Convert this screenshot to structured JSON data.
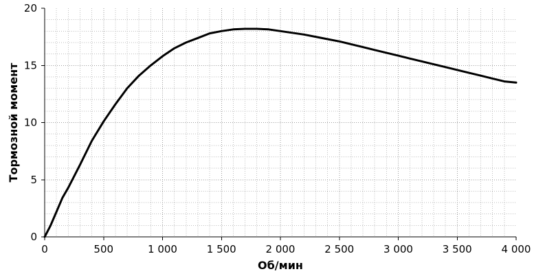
{
  "chart_data": {
    "type": "line",
    "title": "",
    "xlabel": "Об/мин",
    "ylabel": "Тормозной момент",
    "xlim": [
      0,
      4000
    ],
    "ylim": [
      0,
      20
    ],
    "x_ticks": [
      0,
      500,
      1000,
      1500,
      2000,
      2500,
      3000,
      3500,
      4000
    ],
    "x_tick_labels": [
      "0",
      "500",
      "1 000",
      "1 500",
      "2 000",
      "2 500",
      "3 000",
      "3 500",
      "4 000"
    ],
    "y_ticks": [
      0,
      5,
      10,
      15,
      20
    ],
    "y_tick_labels": [
      "0",
      "5",
      "10",
      "15",
      "20"
    ],
    "x_minor_step": 100,
    "y_minor_step": 1,
    "grid": true,
    "line_color": "#000000",
    "series": [
      {
        "x": [
          0,
          50,
          100,
          150,
          200,
          300,
          400,
          500,
          600,
          700,
          800,
          900,
          1000,
          1100,
          1200,
          1300,
          1400,
          1500,
          1600,
          1700,
          1800,
          1900,
          2000,
          2100,
          2200,
          2300,
          2400,
          2500,
          2600,
          2700,
          2800,
          2900,
          3000,
          3100,
          3200,
          3300,
          3400,
          3500,
          3600,
          3700,
          3800,
          3900,
          4000
        ],
        "y": [
          0,
          1.0,
          2.2,
          3.4,
          4.3,
          6.3,
          8.4,
          10.1,
          11.6,
          13.0,
          14.1,
          15.0,
          15.8,
          16.5,
          17.0,
          17.4,
          17.8,
          18.0,
          18.15,
          18.2,
          18.2,
          18.15,
          18.0,
          17.85,
          17.7,
          17.5,
          17.3,
          17.1,
          16.85,
          16.6,
          16.35,
          16.1,
          15.85,
          15.6,
          15.35,
          15.1,
          14.85,
          14.6,
          14.35,
          14.1,
          13.85,
          13.6,
          13.5
        ]
      }
    ]
  }
}
